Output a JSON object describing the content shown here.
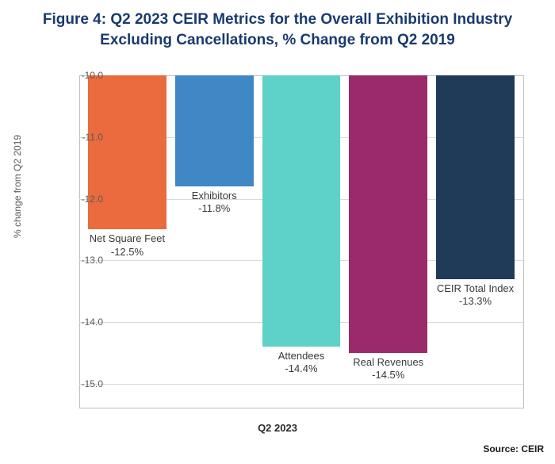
{
  "chart": {
    "type": "bar",
    "title": "Figure 4: Q2 2023 CEIR Metrics for the Overall Exhibition Industry Excluding Cancellations, % Change from Q2 2019",
    "title_color": "#1a3a6e",
    "title_fontsize": 19,
    "y_axis_label": "% change from Q2 2019",
    "x_axis_label": "Q2 2023",
    "source": "Source: CEIR",
    "ylim_top": -10.0,
    "ylim_bottom": -15.4,
    "ytick_step": 1.0,
    "yticks": [
      "-10.0",
      "-11.0",
      "-12.0",
      "-13.0",
      "-14.0",
      "-15.0"
    ],
    "grid_color": "#d9d9d9",
    "axis_color": "#bfbfbf",
    "background_color": "#ffffff",
    "label_fontsize": 13,
    "tick_fontsize": 12,
    "bar_gap_ratio": 0.02,
    "bars": [
      {
        "name": "Net Square Feet",
        "value": -12.5,
        "value_label": "-12.5%",
        "color": "#ea6b3d"
      },
      {
        "name": "Exhibitors",
        "value": -11.8,
        "value_label": "-11.8%",
        "color": "#3f88c5"
      },
      {
        "name": "Attendees",
        "value": -14.4,
        "value_label": "-14.4%",
        "color": "#5ed1c8"
      },
      {
        "name": "Real Revenues",
        "value": -14.5,
        "value_label": "-14.5%",
        "color": "#9a2a6a"
      },
      {
        "name": "CEIR Total Index",
        "value": -13.3,
        "value_label": "-13.3%",
        "color": "#1f3b57"
      }
    ]
  }
}
